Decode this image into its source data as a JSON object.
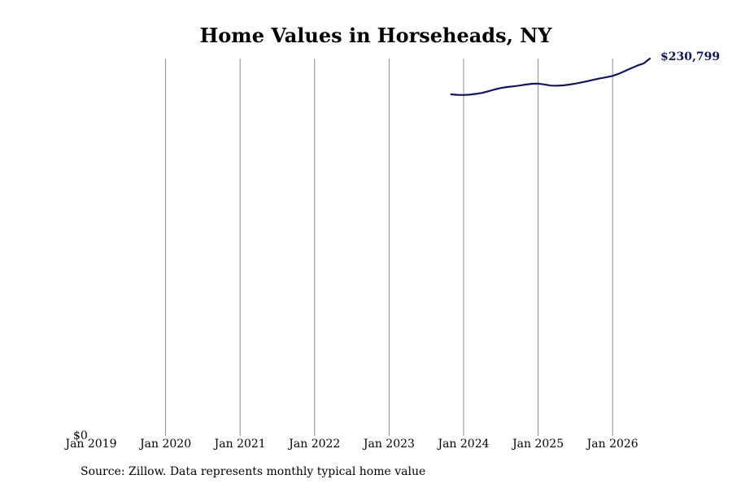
{
  "chart_data": {
    "type": "line",
    "title": "Home Values in Horseheads, NY",
    "xlabel": "",
    "ylabel": "",
    "x_ticks": [
      "Jan 2019",
      "Jan 2020",
      "Jan 2021",
      "Jan 2022",
      "Jan 2023",
      "Jan 2024",
      "Jan 2025",
      "Jan 2026"
    ],
    "y_ticks": [
      {
        "value": 0,
        "label": "$0"
      }
    ],
    "ylim": [
      0,
      230799
    ],
    "xlim": [
      "2019-01",
      "2026-07"
    ],
    "grid": "vertical",
    "series": [
      {
        "color": "#14145a",
        "x": [
          "2023-11",
          "2023-12",
          "2024-01",
          "2024-02",
          "2024-03",
          "2024-04",
          "2024-05",
          "2024-06",
          "2024-07",
          "2024-08",
          "2024-09",
          "2024-10",
          "2024-11",
          "2024-12",
          "2025-01",
          "2025-02",
          "2025-03",
          "2025-04",
          "2025-05",
          "2025-06",
          "2025-07",
          "2025-08",
          "2025-09",
          "2025-10",
          "2025-11",
          "2025-12",
          "2026-01",
          "2026-02",
          "2026-03",
          "2026-04",
          "2026-05",
          "2026-06",
          "2026-07"
        ],
        "values": [
          208900,
          208600,
          208500,
          208700,
          209200,
          209800,
          210800,
          211900,
          212800,
          213400,
          213800,
          214300,
          214900,
          215400,
          215500,
          215000,
          214300,
          214200,
          214400,
          214900,
          215500,
          216200,
          217000,
          217900,
          218700,
          219400,
          220200,
          221500,
          223200,
          224900,
          226500,
          227800,
          230799
        ]
      }
    ],
    "end_label": "$230,799"
  },
  "source_text": "Source: Zillow. Data represents monthly typical home value"
}
